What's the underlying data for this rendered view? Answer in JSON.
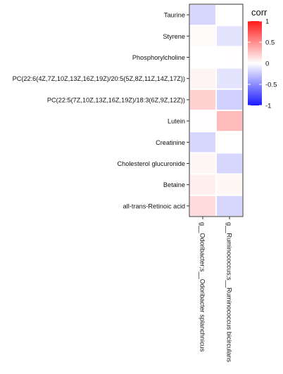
{
  "chart_data": {
    "type": "heatmap",
    "rows": [
      "Taurine",
      "Styrene",
      "Phosphorylcholine",
      "PC(22:6(4Z,7Z,10Z,13Z,16Z,19Z)/20:5(5Z,8Z,11Z,14Z,17Z))",
      "PC(22:5(7Z,10Z,13Z,16Z,19Z)/18:3(6Z,9Z,12Z))",
      "Lutein",
      "Creatinine",
      "Cholesterol glucuronide",
      "Betaine",
      "all-trans-Retinoic acid"
    ],
    "columns": [
      "g__Odoribacter;s__Odoribacter splanchnicus",
      "g__Ruminococcus;s__Ruminococcus bicirculans"
    ],
    "values": [
      [
        -0.18,
        0.0
      ],
      [
        0.02,
        -0.12
      ],
      [
        0.0,
        0.01
      ],
      [
        0.05,
        -0.12
      ],
      [
        0.2,
        -0.2
      ],
      [
        0.01,
        0.3
      ],
      [
        -0.18,
        0.0
      ],
      [
        0.04,
        -0.18
      ],
      [
        0.07,
        0.04
      ],
      [
        0.15,
        -0.18
      ]
    ],
    "legend": {
      "title": "corr",
      "ticks": [
        1,
        0.5,
        0,
        -0.5,
        -1
      ],
      "range": [
        -1,
        1
      ],
      "colors": {
        "low": "#1a1aff",
        "mid": "#ffffff",
        "high": "#ff1a1a"
      }
    }
  }
}
